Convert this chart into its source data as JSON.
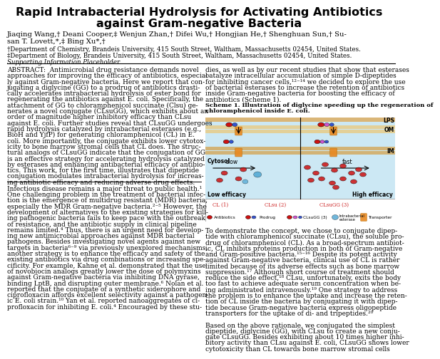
{
  "title_line1": "Rapid Intrabacterial Hydrolysis for Activating Antibiotics",
  "title_line2": "against Gram-negative Bacteria",
  "author_line1": "Jiaqing Wang,† Deani Cooper,‡ Wenjun Zhan,† Difei Wu,† Hongjian He,† Shenghuan Sun,† Su-",
  "author_line2": "san T. Lovett,*,‡ Bing Xu*,†",
  "affil1": "†Department of Chemistry, Brandeis University, 415 South Street, Waltham, Massachusetts 02454, United States.",
  "affil2": "‡Department of Biology, Brandeis University, 415 South Street, Waltham, Massachusetts 02454, United States.",
  "supporting": "Supporting Information Placeholder",
  "abstract_lines": [
    "ABSTRACT:  Antimicrobial drug resistance demands novel",
    "approaches for improving the efficacy of antibiotics, especial-",
    "ly against Gram-negative bacteria. Here we report that con-",
    "jugating a diglycine (GG) to a prodrug of antibiotics drasti-",
    "cally accelerates intrabacterial hydrolysis of ester bond for",
    "regenerating the antibiotics against E. coli. Specifically, the",
    "attachment of GG to chloramphenicol succinate (Clsu) ge-",
    "nerates a novel conjugate (CLsuGG), which exhibits about an",
    "order of magnitude higher inhibitory efficacy than CLsu",
    "against E. coli. Further studies reveal that CLsuGG undergoes",
    "rapid hydrolysis catalyzed by intrabacterial esterases (e.g.,",
    "BioH and YjfP) for generating chloramphenicol (CL) in E.",
    "coli. More importantly, the conjugate exhibits lower cytotox-",
    "icity to bone marrow stromal cells that CL does. The struc-",
    "tural analogs of CLsuGG indicate that the conjugation of GG",
    "is an effective strategy for accelerating hydrolysis catalyzed",
    "by esterases and enhancing antibacterial efficacy of antibio-",
    "tics. This work, for the first time, illustrates that dipeptide",
    "conjugation modulates intrabacterial hydrolysis for increas-",
    "ing antibiotic efficacy and reducing adverse drug effects."
  ],
  "right_top_lines": [
    "dies, as well as by our recent studies that show that esterases",
    "catalyze intracellular accumulation of simple D-dipeptides",
    "for inhibiting cancer cells,¹²⁻¹⁴ we decided to explore the use",
    "of bacterial esterases to increase the retention of antibiotics",
    "inside Gram-negative bacteria for boosting the efficacy of",
    "antibiotics (Scheme 1)."
  ],
  "scheme_cap_line1": "Scheme 1. Illustration of diglycine speeding up the regeneration of",
  "scheme_cap_line2": "chloramphenicol inside E. coli.",
  "body_left_lines": [
    "Infectious disease remains a major threat to public health.¹",
    "One challenging problem in the treatment of bacterial infec-",
    "tion is the emergence of multidrug resistant (MDR) bacteria,",
    "especially the MDR Gram-negative bacteria.²⁻⁵ However, the",
    "development of alternatives to the existing strategies for kill-",
    "ing pathogenic bacteria fails to keep pace with the outbreak",
    "of resistance, and the antibiotic supply in clinical pipeline",
    "remains limited.⁴ Thus, there is an urgent need for develop-",
    "ing new antimicrobial approaches against MDR bacterial",
    "pathogens. Besides investigating novel agents against new",
    "targets in bacteria⁶⁻⁹ via previously unexplored mechanisms,",
    "another strategy is to enhance the efficacy and safety of the",
    "existing antibiotics via drug combinations or increasing spe-",
    "cificity. For example, Kahne et al. demonstrated that the use",
    "of novobiocin analogs greatly lower the dose of polymyxins",
    "against Gram-negative bacteria via inhibiting DNA gyrase,",
    "binding LptB, and disrupting outer membrane.⁶ Nolan et al.",
    "reported that the conjugate of a synthetic siderophore and",
    "ciprofloxacin affords excellent selectivity against a pathogen-",
    "ic E. coli strain.¹⁰ Yan et al. reported nanoaggregates of ci-",
    "profloxacin for inhibiting E. coli.⁴ Encouraged by these stu-"
  ],
  "body_right_lines": [
    "To demonstrate the concept, we chose to conjugate dipep-",
    "tide with chloramphenicol succinate (CLsu), the soluble pro-",
    "drug of chloramphenicol (CL). As a broad-spectrum antibiot-",
    "ic, CL inhibits proteins production in both of Gram-negative",
    "and Gram-positive bacteria.¹⁵⁻¹⁶ Despite its potent activity",
    "against Gram-negative bacteria, clinical use of CL is rather",
    "limited because of its adverse effects such as bone marrow",
    "suppression.¹⁷ Although short course of treatment should",
    "reduce the side effect,¹⁸ CLsu, unfortunately, exits the body",
    "too fast to achieve adequate serum concentration when be-",
    "ing administrated intravenously.¹⁹ One strategy to address",
    "the problem is to enhance the uptake and increase the reten-",
    "tion of CL inside the bacteria by conjugating it with dipep-",
    "tide because Gram-negative bacteria express oligopeptide",
    "transporters for the uptake of di- and tripeptides.²⁰",
    "",
    "Based on the above rationale, we conjugated the simplest",
    "dipeptide, diglycine (GG), with CLsu to create a new conju-",
    "gate CLsuGG. Besides exhibiting about 10 times higher inhi-",
    "bitory activity than CLsu against E. coli, CLsuGG shows lower",
    "cytotoxicity than CL towards bone marrow stromal cells"
  ],
  "bg_color": "#ffffff"
}
